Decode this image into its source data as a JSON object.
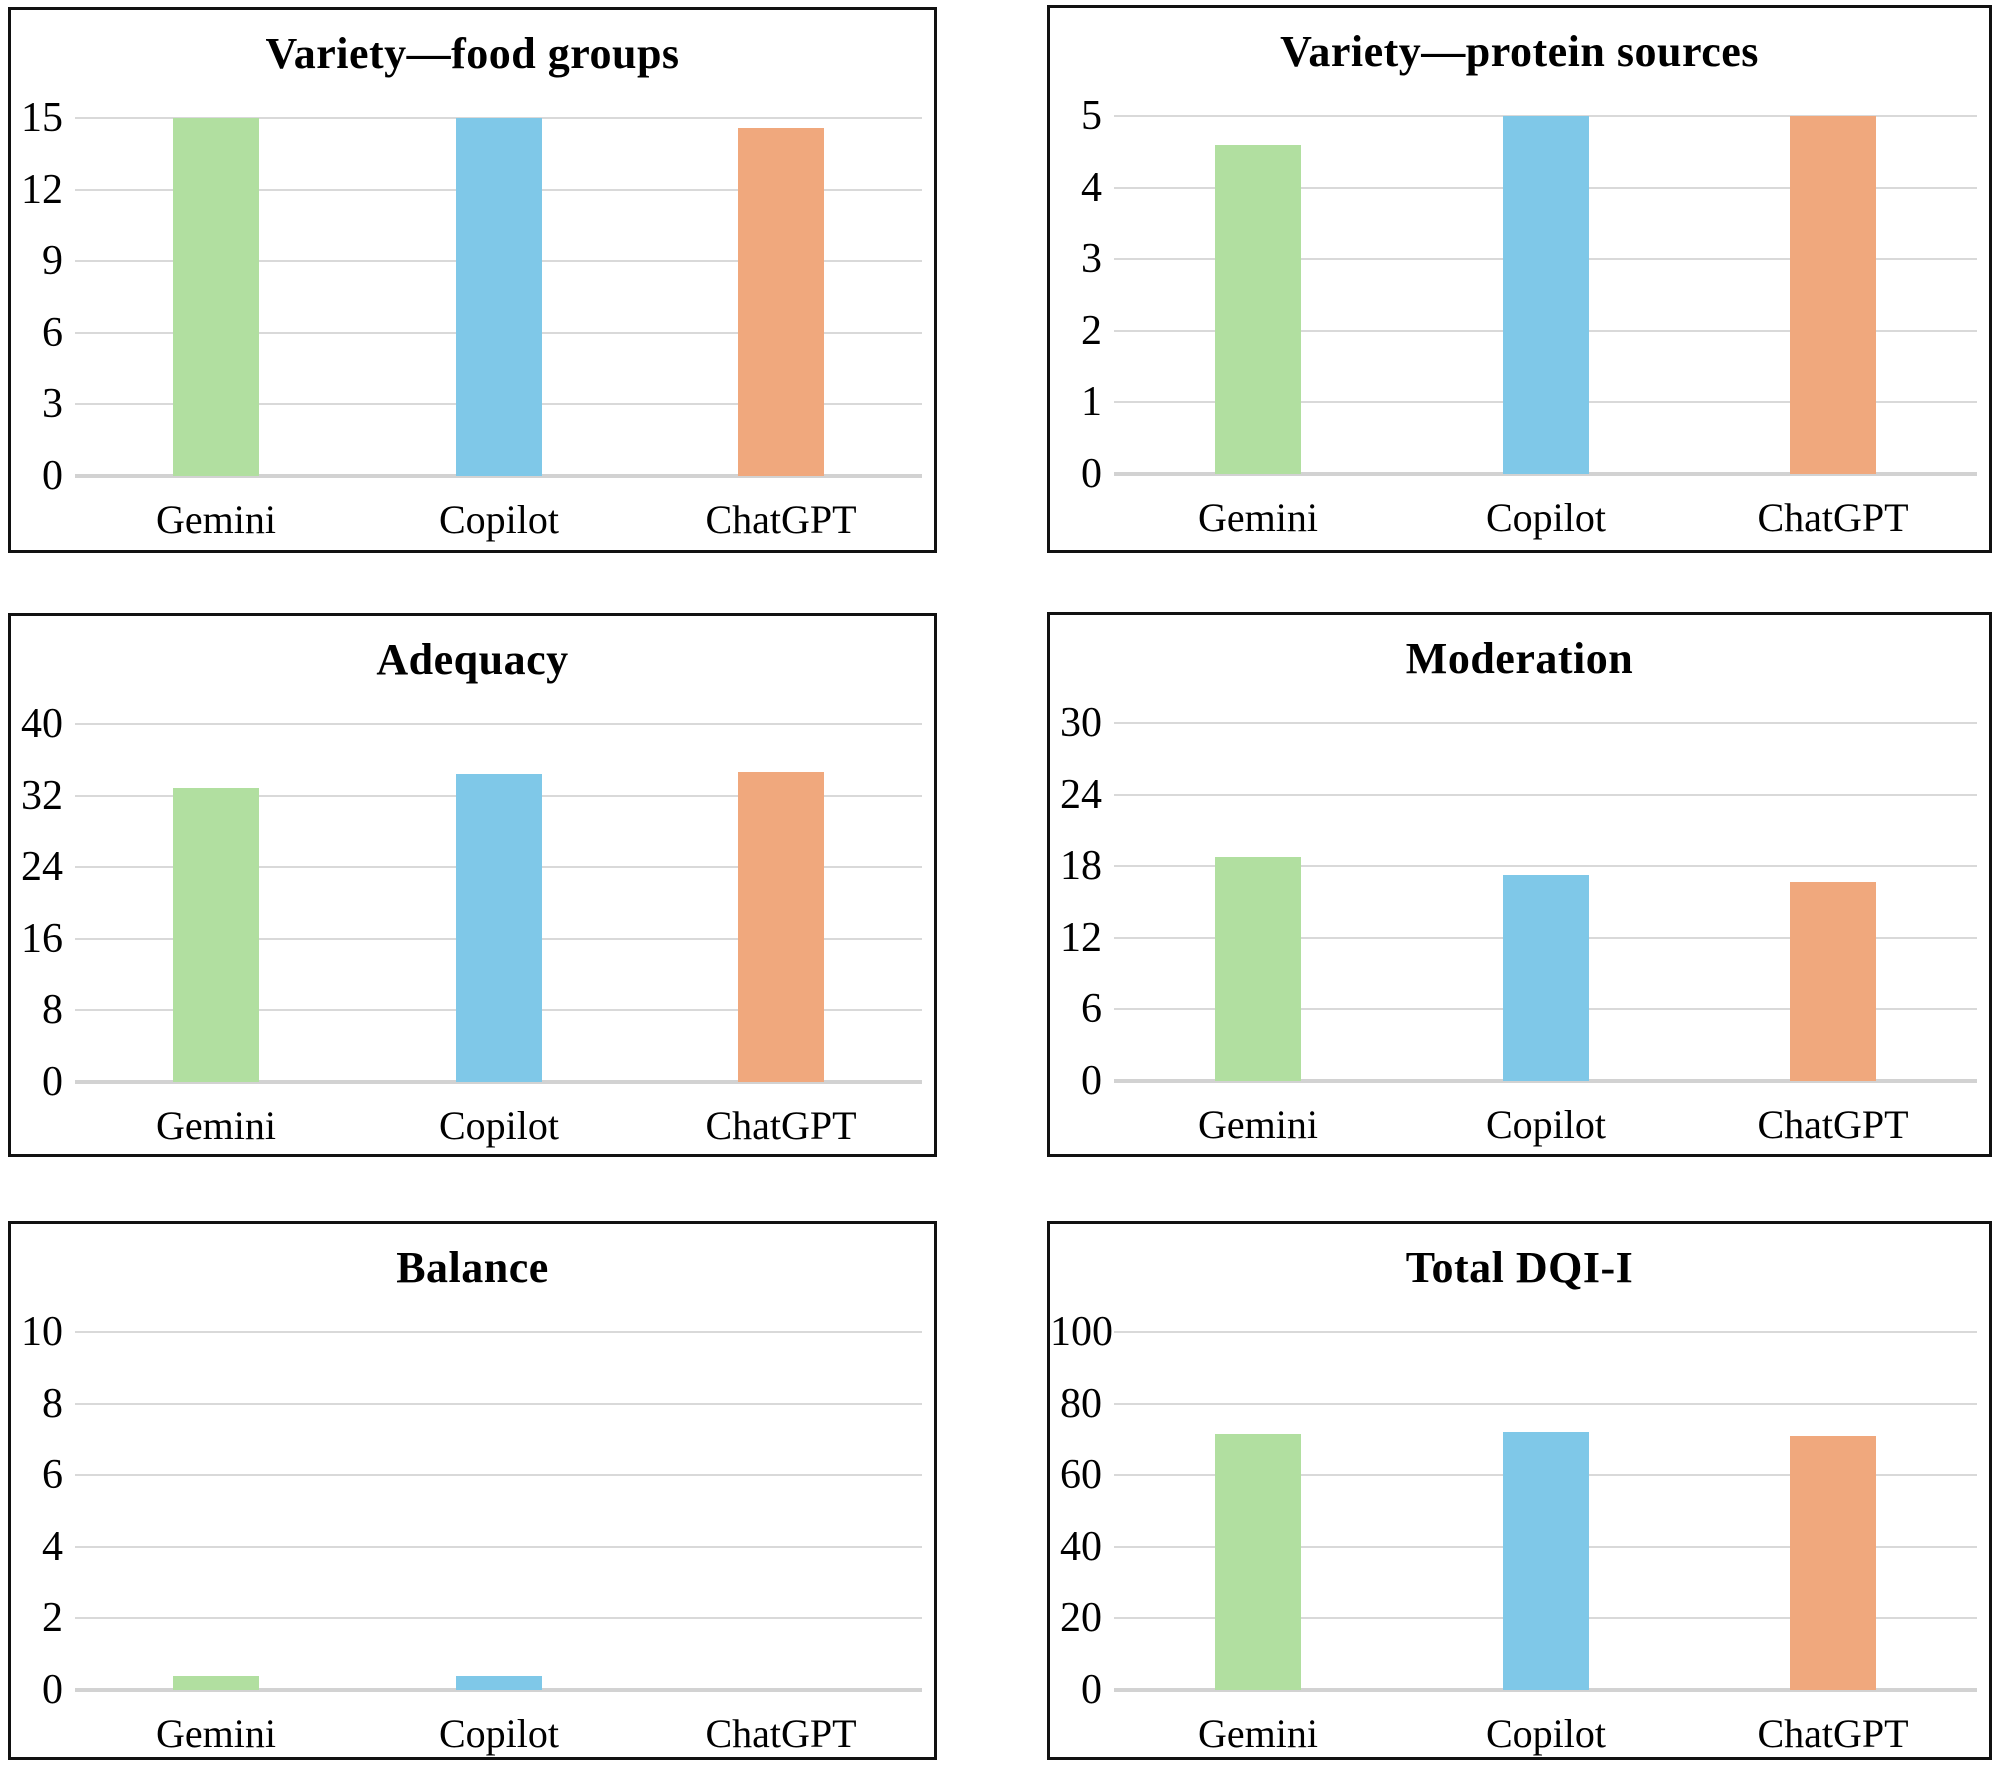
{
  "figure": {
    "description": "Six bar chart panels comparing AI chatbots on diet quality index components",
    "series_colors": {
      "gemini": "#b1dfa0",
      "copilot": "#7fc8e8",
      "chatgpt": "#f0a87d"
    },
    "gridline_color": "#d9d9d9",
    "baseline_color": "#d2d2d2",
    "border_color": "#111111"
  },
  "chart_data": [
    {
      "type": "bar",
      "title": "Variety—food groups",
      "categories": [
        "Gemini",
        "Copilot",
        "ChatGPT"
      ],
      "values": [
        15,
        15,
        14.6
      ],
      "ylim": [
        0,
        15
      ],
      "yticks": [
        0,
        3,
        6,
        9,
        12,
        15
      ],
      "xlabel": "",
      "ylabel": "",
      "grid": true,
      "legend": "none"
    },
    {
      "type": "bar",
      "title": "Variety—protein sources",
      "categories": [
        "Gemini",
        "Copilot",
        "ChatGPT"
      ],
      "values": [
        4.6,
        5,
        5
      ],
      "ylim": [
        0,
        5
      ],
      "yticks": [
        0,
        1,
        2,
        3,
        4,
        5
      ],
      "xlabel": "",
      "ylabel": "",
      "grid": true,
      "legend": "none"
    },
    {
      "type": "bar",
      "title": "Adequacy",
      "categories": [
        "Gemini",
        "Copilot",
        "ChatGPT"
      ],
      "values": [
        32.8,
        34.4,
        34.6
      ],
      "ylim": [
        0,
        40
      ],
      "yticks": [
        0,
        8,
        16,
        24,
        32,
        40
      ],
      "xlabel": "",
      "ylabel": "",
      "grid": true,
      "legend": "none"
    },
    {
      "type": "bar",
      "title": "Moderation",
      "categories": [
        "Gemini",
        "Copilot",
        "ChatGPT"
      ],
      "values": [
        18.8,
        17.3,
        16.7
      ],
      "ylim": [
        0,
        30
      ],
      "yticks": [
        0,
        6,
        12,
        18,
        24,
        30
      ],
      "xlabel": "",
      "ylabel": "",
      "grid": true,
      "legend": "none"
    },
    {
      "type": "bar",
      "title": "Balance",
      "categories": [
        "Gemini",
        "Copilot",
        "ChatGPT"
      ],
      "values": [
        0.4,
        0.4,
        0
      ],
      "ylim": [
        0,
        10
      ],
      "yticks": [
        0,
        2,
        4,
        6,
        8,
        10
      ],
      "xlabel": "",
      "ylabel": "",
      "grid": true,
      "legend": "none"
    },
    {
      "type": "bar",
      "title": "Total DQI-I",
      "categories": [
        "Gemini",
        "Copilot",
        "ChatGPT"
      ],
      "values": [
        71.6,
        72.1,
        71
      ],
      "ylim": [
        0,
        100
      ],
      "yticks": [
        0,
        20,
        40,
        60,
        80,
        100
      ],
      "xlabel": "",
      "ylabel": "",
      "grid": true,
      "legend": "none"
    }
  ]
}
